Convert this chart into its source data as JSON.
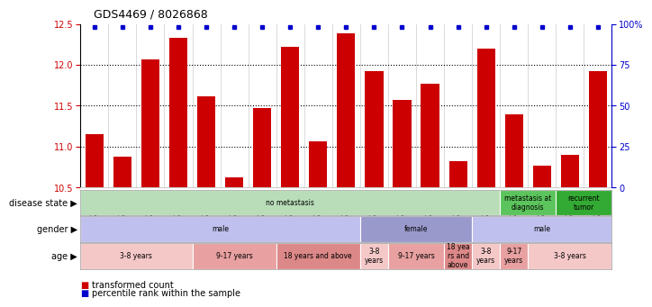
{
  "title": "GDS4469 / 8026868",
  "samples": [
    "GSM1025530",
    "GSM1025531",
    "GSM1025532",
    "GSM1025546",
    "GSM1025535",
    "GSM1025544",
    "GSM1025545",
    "GSM1025537",
    "GSM1025542",
    "GSM1025543",
    "GSM1025540",
    "GSM1025528",
    "GSM1025534",
    "GSM1025541",
    "GSM1025536",
    "GSM1025538",
    "GSM1025533",
    "GSM1025529",
    "GSM1025539"
  ],
  "bar_values": [
    11.15,
    10.88,
    12.07,
    12.33,
    11.62,
    10.63,
    11.47,
    12.22,
    11.06,
    12.38,
    11.92,
    11.57,
    11.77,
    10.82,
    12.2,
    11.4,
    10.77,
    10.9,
    11.92
  ],
  "ylim_left": [
    10.5,
    12.5
  ],
  "ylim_right": [
    0,
    100
  ],
  "yticks_left": [
    10.5,
    11.0,
    11.5,
    12.0,
    12.5
  ],
  "yticks_right": [
    0,
    25,
    50,
    75,
    100
  ],
  "ytick_labels_right": [
    "0",
    "25",
    "50",
    "75",
    "100%"
  ],
  "bar_color": "#cc0000",
  "blue_color": "#0000cc",
  "disease_state_rows": [
    {
      "label": "no metastasis",
      "start": 0,
      "end": 15,
      "color": "#b8ddb8"
    },
    {
      "label": "metastasis at\ndiagnosis",
      "start": 15,
      "end": 17,
      "color": "#5cc45c"
    },
    {
      "label": "recurrent\ntumor",
      "start": 17,
      "end": 19,
      "color": "#33aa33"
    }
  ],
  "gender_rows": [
    {
      "label": "male",
      "start": 0,
      "end": 10,
      "color": "#c0c0ee"
    },
    {
      "label": "female",
      "start": 10,
      "end": 14,
      "color": "#9999cc"
    },
    {
      "label": "male",
      "start": 14,
      "end": 19,
      "color": "#c0c0ee"
    }
  ],
  "age_rows": [
    {
      "label": "3-8 years",
      "start": 0,
      "end": 4,
      "color": "#f5c8c8"
    },
    {
      "label": "9-17 years",
      "start": 4,
      "end": 7,
      "color": "#e8a0a0"
    },
    {
      "label": "18 years and above",
      "start": 7,
      "end": 10,
      "color": "#dd8888"
    },
    {
      "label": "3-8\nyears",
      "start": 10,
      "end": 11,
      "color": "#f5c8c8"
    },
    {
      "label": "9-17 years",
      "start": 11,
      "end": 13,
      "color": "#e8a0a0"
    },
    {
      "label": "18 yea\nrs and\nabove",
      "start": 13,
      "end": 14,
      "color": "#dd8888"
    },
    {
      "label": "3-8\nyears",
      "start": 14,
      "end": 15,
      "color": "#f5c8c8"
    },
    {
      "label": "9-17\nyears",
      "start": 15,
      "end": 16,
      "color": "#e8a0a0"
    },
    {
      "label": "3-8 years",
      "start": 16,
      "end": 19,
      "color": "#f5c8c8"
    }
  ],
  "legend_items": [
    {
      "color": "#cc0000",
      "label": "transformed count"
    },
    {
      "color": "#0000cc",
      "label": "percentile rank within the sample"
    }
  ]
}
